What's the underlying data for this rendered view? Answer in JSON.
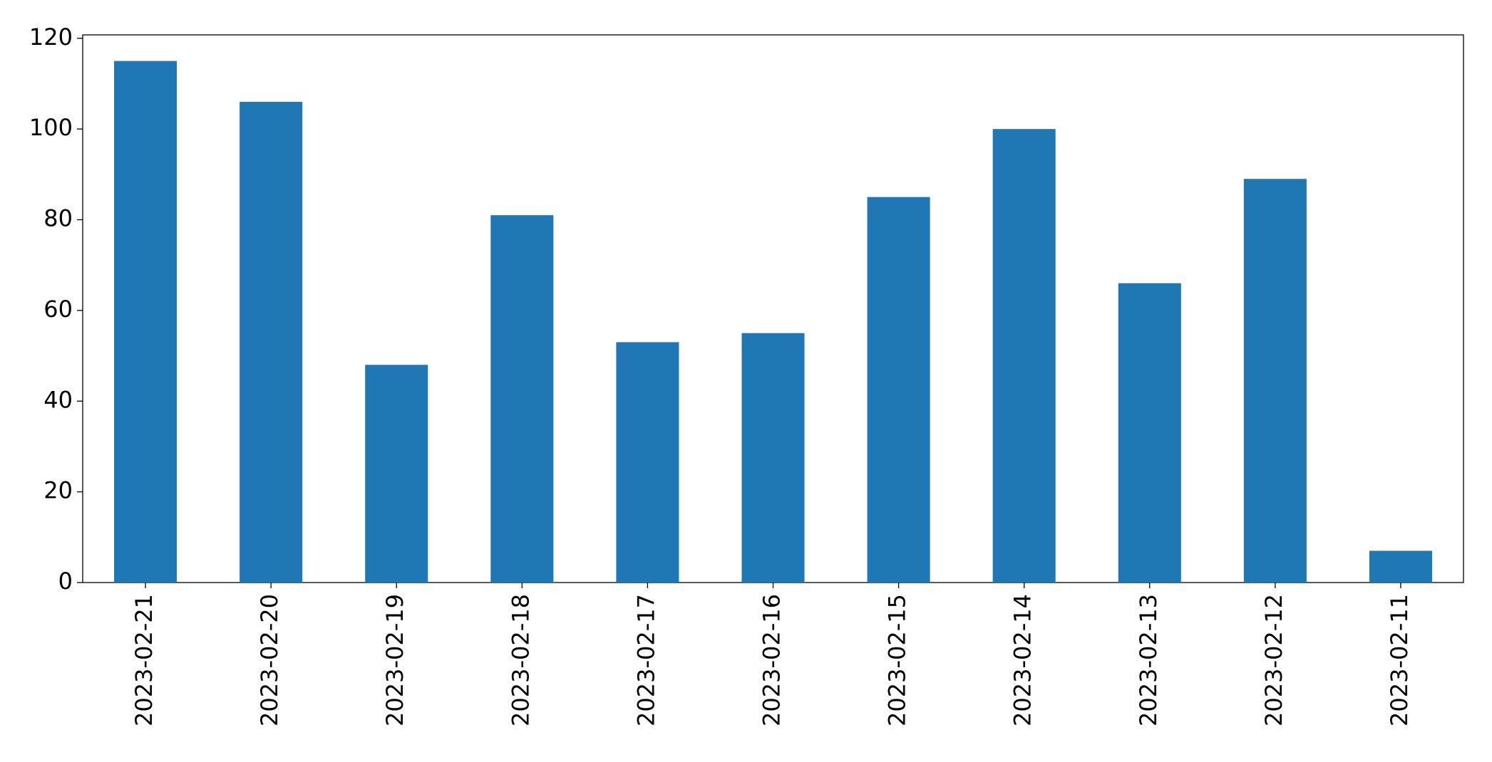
{
  "chart_data": {
    "type": "bar",
    "x": [
      "2023-02-21",
      "2023-02-20",
      "2023-02-19",
      "2023-02-18",
      "2023-02-17",
      "2023-02-16",
      "2023-02-15",
      "2023-02-14",
      "2023-02-13",
      "2023-02-12",
      "2023-02-11"
    ],
    "values": [
      115,
      106,
      48,
      81,
      53,
      55,
      85,
      100,
      66,
      89,
      7
    ],
    "color": "#1f77b4",
    "ylim": [
      0,
      120.75
    ],
    "yticks": [
      0,
      20,
      40,
      60,
      80,
      100,
      120
    ],
    "grid": false
  }
}
